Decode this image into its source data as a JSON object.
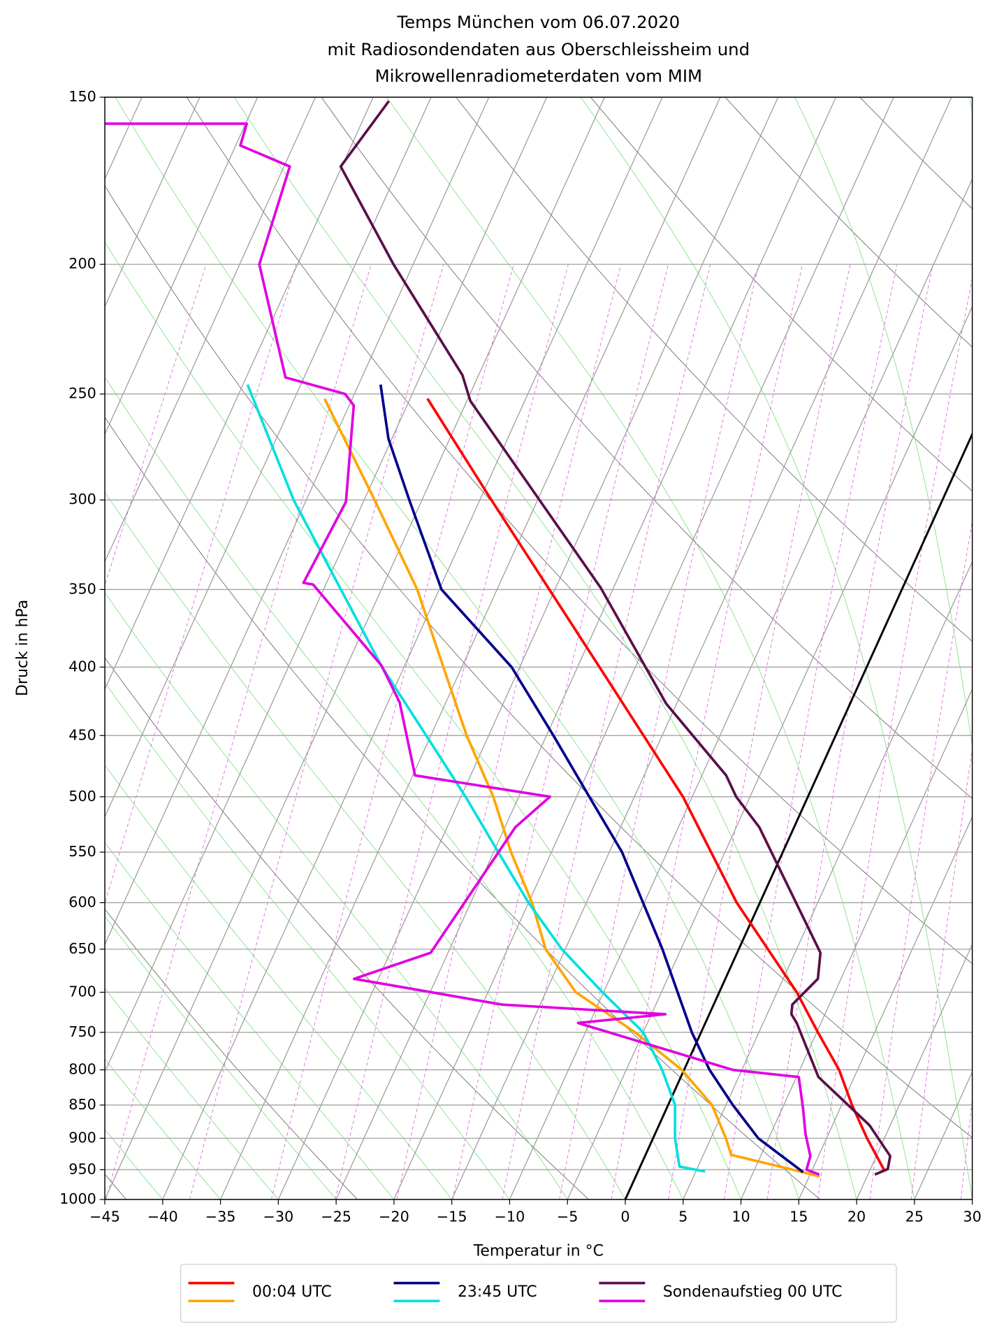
{
  "chart_data": {
    "type": "skewt",
    "title": [
      "Temps München vom 06.07.2020",
      "mit Radiosondendaten aus Oberschleissheim und",
      "Mikrowellenradiometerdaten vom MIM"
    ],
    "x_label": "Temperatur in °C",
    "y_label": "Druck in hPa",
    "xlim": [
      -45,
      30
    ],
    "ylim": [
      1000,
      150
    ],
    "log_y": true,
    "grid": true,
    "highlighted_isotherm": {
      "value": 0,
      "color": "#000000"
    },
    "xticks": [
      {
        "value": -45,
        "label": "−45"
      },
      {
        "value": -40,
        "label": "−40"
      },
      {
        "value": -35,
        "label": "−35"
      },
      {
        "value": -30,
        "label": "−30"
      },
      {
        "value": -25,
        "label": "−25"
      },
      {
        "value": -20,
        "label": "−20"
      },
      {
        "value": -15,
        "label": "−15"
      },
      {
        "value": -10,
        "label": "−10"
      },
      {
        "value": -5,
        "label": "−5"
      },
      0,
      5,
      10,
      15,
      20,
      25,
      30
    ],
    "yticks": [
      150,
      200,
      250,
      300,
      350,
      400,
      450,
      500,
      550,
      600,
      650,
      700,
      750,
      800,
      850,
      900,
      950,
      1000
    ],
    "legend": "lower center outside",
    "series": [
      {
        "name": "00:04 UTC",
        "temperature": {
          "color": "#ff0000",
          "pressure": [
            252,
            300,
            400,
            500,
            600,
            700,
            750,
            800,
            850,
            900,
            950
          ],
          "values": [
            -48.5,
            -39.0,
            -23.1,
            -10.8,
            -2.0,
            6.7,
            10.1,
            13.4,
            15.9,
            18.5,
            21.2
          ]
        },
        "dewpoint": {
          "color": "#ffa500",
          "pressure": [
            252,
            300,
            350,
            400,
            450,
            500,
            550,
            600,
            650,
            700,
            750,
            800,
            850,
            900,
            926,
            950,
            961
          ],
          "values": [
            -57.4,
            -49.1,
            -41.9,
            -36.6,
            -31.9,
            -27.2,
            -23.5,
            -19.7,
            -16.7,
            -12.4,
            -5.7,
            -0.2,
            3.8,
            6.3,
            7.4,
            13.3,
            15.9
          ]
        }
      },
      {
        "name": "23:45 UTC",
        "temperature": {
          "color": "#00008b",
          "pressure": [
            246,
            270,
            300,
            350,
            400,
            450,
            500,
            550,
            600,
            650,
            700,
            750,
            800,
            850,
            900,
            954
          ],
          "values": [
            -53.1,
            -50.3,
            -46.1,
            -39.8,
            -30.7,
            -24.4,
            -18.9,
            -13.9,
            -10.1,
            -6.6,
            -3.6,
            -0.8,
            2.2,
            5.6,
            9.1,
            14.3
          ]
        },
        "dewpoint": {
          "color": "#00e0e0",
          "pressure": [
            246,
            300,
            350,
            400,
            450,
            500,
            550,
            600,
            650,
            700,
            750,
            800,
            850,
            900,
            945,
            953
          ],
          "values": [
            -64.6,
            -56.1,
            -48.5,
            -41.9,
            -35.4,
            -29.6,
            -24.6,
            -20.0,
            -15.3,
            -10.1,
            -5.0,
            -1.9,
            0.6,
            1.9,
            3.4,
            5.8
          ]
        }
      },
      {
        "name": "Sondenaufstieg 00 UTC",
        "temperature": {
          "color": "#5a0f4a",
          "pressure": [
            151,
            169,
            200,
            242,
            253,
            349,
            426,
            482,
            500,
            527,
            654,
            684,
            715,
            727,
            738,
            810,
            880,
            928,
            949,
            958
          ],
          "values": [
            -63.5,
            -65.1,
            -56.7,
            -46.4,
            -44.7,
            -26.1,
            -15.9,
            -7.9,
            -6.2,
            -3.0,
            7.2,
            8.0,
            6.8,
            7.1,
            7.9,
            11.9,
            18.2,
            21.2,
            21.5,
            20.6
          ]
        },
        "dewpoint": {
          "color": "#e000e0",
          "pressure": [
            157,
            157,
            163,
            169,
            200,
            243,
            250,
            255,
            301,
            346,
            347,
            399,
            425,
            482,
            500,
            527,
            654,
            684,
            715,
            727,
            738,
            800,
            810,
            855,
            893,
            928,
            950,
            958
          ],
          "values": [
            -87.2,
            -74.9,
            -74.6,
            -69.5,
            -68.3,
            -61.6,
            -55.8,
            -54.6,
            -51.5,
            -52.0,
            -51.1,
            -42.0,
            -39.0,
            -34.8,
            -22.3,
            -24.1,
            -26.5,
            -32.1,
            -18.3,
            -3.8,
            -11.0,
            4.2,
            10.2,
            11.8,
            13.0,
            14.3,
            14.5,
            15.8
          ]
        }
      }
    ]
  }
}
